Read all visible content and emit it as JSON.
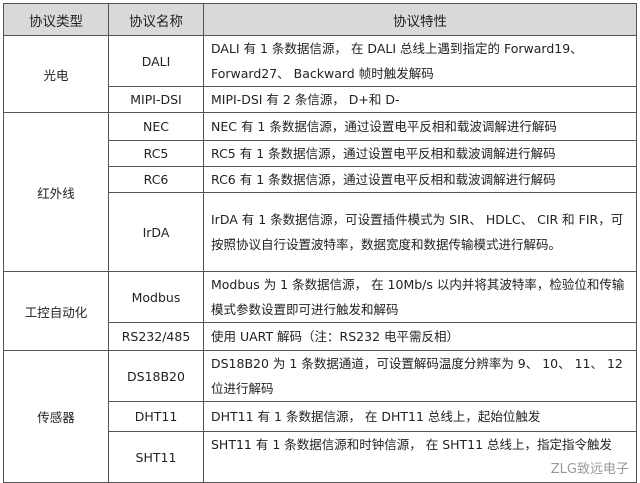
{
  "headers": [
    "协议类型",
    "协议名称",
    "协议特性"
  ],
  "groups": [
    {
      "type": "光电",
      "rows": [
        {
          "name": "DALI",
          "desc": "DALI 有 1 条数据信源， 在 DALI 总线上遇到指定的 Forward19、 Forward27、 Backward 帧时触发解码"
        },
        {
          "name": "MIPI-DSI",
          "desc": "MIPI-DSI 有 2 条信源， D+和 D-"
        }
      ]
    },
    {
      "type": "红外线",
      "rows": [
        {
          "name": "NEC",
          "desc": "NEC 有 1 条数据信源，通过设置电平反相和载波调解进行解码"
        },
        {
          "name": "RC5",
          "desc": "RC5 有 1 条数据信源，通过设置电平反相和载波调解进行解码"
        },
        {
          "name": "RC6",
          "desc": "RC6 有 1 条数据信源，通过设置电平反相和载波调解进行解码"
        },
        {
          "name": "IrDA",
          "desc": "IrDA 有 1 条数据信源，可设置插件模式为 SIR、 HDLC、 CIR 和 FIR，可按照协议自行设置波特率，数据宽度和数据传输模式进行解码。"
        }
      ]
    },
    {
      "type": "工控自动化",
      "rows": [
        {
          "name": "Modbus",
          "desc": "Modbus 为 1 条数据信源， 在 10Mb/s 以内并将其波特率，检验位和传输模式参数设置即可进行触发和解码"
        },
        {
          "name": "RS232/485",
          "desc": "使用 UART 解码（注：RS232 电平需反相）"
        }
      ]
    },
    {
      "type": "传感器",
      "rows": [
        {
          "name": "DS18B20",
          "desc": "DS18B20 为 1 条数据通道，可设置解码温度分辨率为 9、 10、 11、 12 位进行解码"
        },
        {
          "name": "DHT11",
          "desc": "DHT11 有 1 条数据信源， 在 DHT11 总线上，起始位触发"
        },
        {
          "name": "SHT11",
          "desc": "SHT11 有 1 条数据信源和时钟信源， 在 SHT11 总线上，指定指令触发"
        }
      ]
    }
  ],
  "watermark": "ZLG致远电子"
}
